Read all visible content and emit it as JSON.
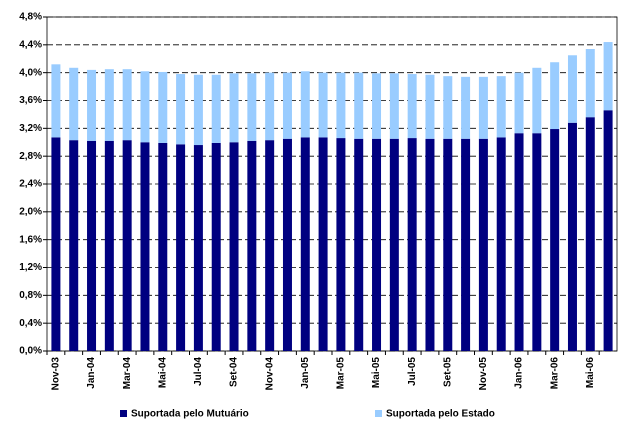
{
  "chart_data": {
    "type": "stacked-bar",
    "categories": [
      "Nov-03",
      null,
      "Jan-04",
      null,
      "Mar-04",
      null,
      "Mai-04",
      null,
      "Jul-04",
      null,
      "Set-04",
      null,
      "Nov-04",
      null,
      "Jan-05",
      null,
      "Mar-05",
      null,
      "Mai-05",
      null,
      "Jul-05",
      null,
      "Set-05",
      null,
      "Nov-05",
      null,
      "Jan-06",
      null,
      "Mar-06",
      null,
      "Mai-06",
      null
    ],
    "series": [
      {
        "name": "Suportada pelo Mutuário",
        "color": "#000080",
        "values": [
          3.07,
          3.03,
          3.02,
          3.02,
          3.03,
          3.0,
          2.99,
          2.97,
          2.96,
          2.99,
          3.0,
          3.02,
          3.03,
          3.05,
          3.07,
          3.07,
          3.06,
          3.05,
          3.05,
          3.05,
          3.06,
          3.05,
          3.05,
          3.05,
          3.05,
          3.07,
          3.13,
          3.13,
          3.19,
          3.28,
          3.36,
          3.46
        ]
      },
      {
        "name": "Suportada pelo Estado",
        "color": "#99ccff",
        "values": [
          1.05,
          1.04,
          1.02,
          1.03,
          1.02,
          1.02,
          1.02,
          1.01,
          1.01,
          0.98,
          0.99,
          0.97,
          0.97,
          0.95,
          0.95,
          0.93,
          0.94,
          0.95,
          0.94,
          0.94,
          0.92,
          0.92,
          0.9,
          0.89,
          0.89,
          0.88,
          0.87,
          0.94,
          0.96,
          0.97,
          0.98,
          0.98
        ]
      }
    ],
    "ylim": [
      0,
      4.8
    ],
    "yticks": [
      {
        "value": 0,
        "label": "0,0%"
      },
      {
        "value": 0.4,
        "label": "0,4%"
      },
      {
        "value": 0.8,
        "label": "0,8%"
      },
      {
        "value": 1.2,
        "label": "1,2%"
      },
      {
        "value": 1.6,
        "label": "1,6%"
      },
      {
        "value": 2.0,
        "label": "2,0%"
      },
      {
        "value": 2.4,
        "label": "2,4%"
      },
      {
        "value": 2.8,
        "label": "2,8%"
      },
      {
        "value": 3.2,
        "label": "3,2%"
      },
      {
        "value": 3.6,
        "label": "3,6%"
      },
      {
        "value": 4.0,
        "label": "4,0%"
      },
      {
        "value": 4.4,
        "label": "4,4%"
      },
      {
        "value": 4.8,
        "label": "4,8%"
      }
    ],
    "grid": true
  }
}
